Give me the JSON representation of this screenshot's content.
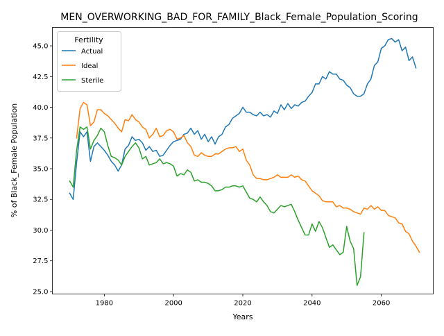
{
  "chart_data": {
    "type": "line",
    "title": "MEN_OVERWORKING_BAD_FOR_FAMILY_Black_Female_Population_Scoring",
    "xlabel": "Years",
    "ylabel": "% of Black_Female Population",
    "xlim": [
      1965,
      2075
    ],
    "ylim": [
      24.8,
      46.5
    ],
    "xticks": [
      1980,
      2000,
      2020,
      2040,
      2060
    ],
    "yticks": [
      25.0,
      27.5,
      30.0,
      32.5,
      35.0,
      37.5,
      40.0,
      42.5,
      45.0
    ],
    "grid": false,
    "legend": {
      "title": "Fertility",
      "position": "top-left"
    },
    "series": [
      {
        "name": "Actual",
        "color": "#1f77b4",
        "points": [
          [
            1970,
            33.0
          ],
          [
            1971,
            32.5
          ],
          [
            1972,
            35.5
          ],
          [
            1973,
            38.0
          ],
          [
            1974,
            37.6
          ],
          [
            1975,
            38.0
          ],
          [
            1976,
            35.6
          ],
          [
            1977,
            36.8
          ],
          [
            1978,
            37.1
          ],
          [
            1979,
            36.8
          ],
          [
            1980,
            36.5
          ],
          [
            1981,
            36.1
          ],
          [
            1982,
            35.6
          ],
          [
            1983,
            35.3
          ],
          [
            1984,
            34.8
          ],
          [
            1985,
            35.3
          ],
          [
            1986,
            36.6
          ],
          [
            1987,
            36.9
          ],
          [
            1988,
            37.6
          ],
          [
            1989,
            37.3
          ],
          [
            1990,
            37.4
          ],
          [
            1991,
            37.1
          ],
          [
            1992,
            36.5
          ],
          [
            1993,
            36.8
          ],
          [
            1994,
            36.4
          ],
          [
            1995,
            36.5
          ],
          [
            1996,
            36.0
          ],
          [
            1997,
            36.1
          ],
          [
            1998,
            36.5
          ],
          [
            1999,
            36.9
          ],
          [
            2000,
            37.2
          ],
          [
            2001,
            37.3
          ],
          [
            2002,
            37.4
          ],
          [
            2003,
            37.8
          ],
          [
            2004,
            37.9
          ],
          [
            2005,
            38.3
          ],
          [
            2006,
            37.8
          ],
          [
            2007,
            38.1
          ],
          [
            2008,
            37.4
          ],
          [
            2009,
            37.8
          ],
          [
            2010,
            37.2
          ],
          [
            2011,
            37.6
          ],
          [
            2012,
            37.0
          ],
          [
            2013,
            37.6
          ],
          [
            2014,
            37.8
          ],
          [
            2015,
            38.4
          ],
          [
            2016,
            38.6
          ],
          [
            2017,
            39.1
          ],
          [
            2018,
            39.3
          ],
          [
            2019,
            39.5
          ],
          [
            2020,
            40.0
          ],
          [
            2021,
            39.6
          ],
          [
            2022,
            39.6
          ],
          [
            2023,
            39.4
          ],
          [
            2024,
            39.3
          ],
          [
            2025,
            39.6
          ],
          [
            2026,
            39.3
          ],
          [
            2027,
            39.4
          ],
          [
            2028,
            39.2
          ],
          [
            2029,
            39.7
          ],
          [
            2030,
            39.5
          ],
          [
            2031,
            40.2
          ],
          [
            2032,
            39.8
          ],
          [
            2033,
            40.3
          ],
          [
            2034,
            39.9
          ],
          [
            2035,
            40.2
          ],
          [
            2036,
            40.1
          ],
          [
            2037,
            40.4
          ],
          [
            2038,
            40.5
          ],
          [
            2039,
            40.9
          ],
          [
            2040,
            41.2
          ],
          [
            2041,
            41.9
          ],
          [
            2042,
            41.9
          ],
          [
            2043,
            42.5
          ],
          [
            2044,
            42.3
          ],
          [
            2045,
            42.9
          ],
          [
            2046,
            42.7
          ],
          [
            2047,
            42.7
          ],
          [
            2048,
            42.3
          ],
          [
            2049,
            42.2
          ],
          [
            2050,
            41.8
          ],
          [
            2051,
            41.6
          ],
          [
            2052,
            41.1
          ],
          [
            2053,
            40.9
          ],
          [
            2054,
            40.9
          ],
          [
            2055,
            41.1
          ],
          [
            2056,
            41.9
          ],
          [
            2057,
            42.3
          ],
          [
            2058,
            43.4
          ],
          [
            2059,
            43.7
          ],
          [
            2060,
            44.8
          ],
          [
            2061,
            45.0
          ],
          [
            2062,
            45.5
          ],
          [
            2063,
            45.6
          ],
          [
            2064,
            45.3
          ],
          [
            2065,
            45.5
          ],
          [
            2066,
            44.6
          ],
          [
            2067,
            44.9
          ],
          [
            2068,
            43.8
          ],
          [
            2069,
            44.1
          ],
          [
            2070,
            43.2
          ]
        ]
      },
      {
        "name": "Ideal",
        "color": "#ff7f0e",
        "points": [
          [
            1972,
            37.5
          ],
          [
            1973,
            39.9
          ],
          [
            1974,
            40.4
          ],
          [
            1975,
            40.2
          ],
          [
            1976,
            38.5
          ],
          [
            1977,
            38.8
          ],
          [
            1978,
            39.8
          ],
          [
            1979,
            39.8
          ],
          [
            1980,
            39.5
          ],
          [
            1981,
            39.3
          ],
          [
            1982,
            39.0
          ],
          [
            1983,
            38.7
          ],
          [
            1984,
            38.3
          ],
          [
            1985,
            38.0
          ],
          [
            1986,
            39.0
          ],
          [
            1987,
            38.9
          ],
          [
            1988,
            39.4
          ],
          [
            1989,
            39.0
          ],
          [
            1990,
            38.8
          ],
          [
            1991,
            38.4
          ],
          [
            1992,
            38.2
          ],
          [
            1993,
            37.5
          ],
          [
            1994,
            37.8
          ],
          [
            1995,
            38.3
          ],
          [
            1996,
            37.6
          ],
          [
            1997,
            37.7
          ],
          [
            1998,
            38.1
          ],
          [
            1999,
            38.2
          ],
          [
            2000,
            38.0
          ],
          [
            2001,
            37.4
          ],
          [
            2002,
            37.5
          ],
          [
            2003,
            37.7
          ],
          [
            2004,
            37.1
          ],
          [
            2005,
            36.8
          ],
          [
            2006,
            36.1
          ],
          [
            2007,
            36.0
          ],
          [
            2008,
            36.3
          ],
          [
            2009,
            36.1
          ],
          [
            2010,
            36.0
          ],
          [
            2011,
            36.0
          ],
          [
            2012,
            36.2
          ],
          [
            2013,
            36.2
          ],
          [
            2014,
            36.4
          ],
          [
            2015,
            36.6
          ],
          [
            2016,
            36.7
          ],
          [
            2017,
            36.7
          ],
          [
            2018,
            36.8
          ],
          [
            2019,
            36.4
          ],
          [
            2020,
            36.6
          ],
          [
            2021,
            35.7
          ],
          [
            2022,
            35.3
          ],
          [
            2023,
            34.5
          ],
          [
            2024,
            34.2
          ],
          [
            2025,
            34.2
          ],
          [
            2026,
            34.1
          ],
          [
            2027,
            34.1
          ],
          [
            2028,
            34.2
          ],
          [
            2029,
            34.3
          ],
          [
            2030,
            34.5
          ],
          [
            2031,
            34.3
          ],
          [
            2032,
            34.3
          ],
          [
            2033,
            34.3
          ],
          [
            2034,
            34.5
          ],
          [
            2035,
            34.3
          ],
          [
            2036,
            34.4
          ],
          [
            2037,
            34.1
          ],
          [
            2038,
            34.0
          ],
          [
            2039,
            33.6
          ],
          [
            2040,
            33.2
          ],
          [
            2041,
            33.0
          ],
          [
            2042,
            32.8
          ],
          [
            2043,
            32.4
          ],
          [
            2044,
            32.3
          ],
          [
            2045,
            32.3
          ],
          [
            2046,
            32.3
          ],
          [
            2047,
            31.9
          ],
          [
            2048,
            32.0
          ],
          [
            2049,
            31.8
          ],
          [
            2050,
            31.8
          ],
          [
            2051,
            31.7
          ],
          [
            2052,
            31.5
          ],
          [
            2053,
            31.4
          ],
          [
            2054,
            31.3
          ],
          [
            2055,
            31.8
          ],
          [
            2056,
            31.7
          ],
          [
            2057,
            32.0
          ],
          [
            2058,
            31.7
          ],
          [
            2059,
            31.9
          ],
          [
            2060,
            31.6
          ],
          [
            2061,
            31.6
          ],
          [
            2062,
            31.2
          ],
          [
            2063,
            31.1
          ],
          [
            2064,
            31.0
          ],
          [
            2065,
            30.6
          ],
          [
            2066,
            30.5
          ],
          [
            2067,
            29.9
          ],
          [
            2068,
            29.7
          ],
          [
            2069,
            29.1
          ],
          [
            2070,
            28.7
          ],
          [
            2071,
            28.2
          ]
        ]
      },
      {
        "name": "Sterile",
        "color": "#2ca02c",
        "points": [
          [
            1970,
            34.0
          ],
          [
            1971,
            33.5
          ],
          [
            1972,
            36.5
          ],
          [
            1973,
            38.4
          ],
          [
            1974,
            38.2
          ],
          [
            1975,
            38.4
          ],
          [
            1976,
            36.6
          ],
          [
            1977,
            37.3
          ],
          [
            1978,
            37.7
          ],
          [
            1979,
            38.3
          ],
          [
            1980,
            38.0
          ],
          [
            1981,
            36.9
          ],
          [
            1982,
            36.0
          ],
          [
            1983,
            35.9
          ],
          [
            1984,
            35.7
          ],
          [
            1985,
            35.3
          ],
          [
            1986,
            36.0
          ],
          [
            1987,
            36.4
          ],
          [
            1988,
            36.8
          ],
          [
            1989,
            37.1
          ],
          [
            1990,
            36.7
          ],
          [
            1991,
            35.8
          ],
          [
            1992,
            36.0
          ],
          [
            1993,
            35.3
          ],
          [
            1994,
            35.4
          ],
          [
            1995,
            35.5
          ],
          [
            1996,
            35.8
          ],
          [
            1997,
            35.4
          ],
          [
            1998,
            35.5
          ],
          [
            1999,
            35.4
          ],
          [
            2000,
            35.2
          ],
          [
            2001,
            34.4
          ],
          [
            2002,
            34.6
          ],
          [
            2003,
            34.5
          ],
          [
            2004,
            34.9
          ],
          [
            2005,
            34.7
          ],
          [
            2006,
            34.0
          ],
          [
            2007,
            34.1
          ],
          [
            2008,
            33.9
          ],
          [
            2009,
            33.9
          ],
          [
            2010,
            33.8
          ],
          [
            2011,
            33.6
          ],
          [
            2012,
            33.2
          ],
          [
            2013,
            33.2
          ],
          [
            2014,
            33.3
          ],
          [
            2015,
            33.5
          ],
          [
            2016,
            33.5
          ],
          [
            2017,
            33.6
          ],
          [
            2018,
            33.6
          ],
          [
            2019,
            33.5
          ],
          [
            2020,
            33.6
          ],
          [
            2021,
            33.1
          ],
          [
            2022,
            32.6
          ],
          [
            2023,
            32.5
          ],
          [
            2024,
            32.3
          ],
          [
            2025,
            32.7
          ],
          [
            2026,
            32.3
          ],
          [
            2027,
            32.0
          ],
          [
            2028,
            31.5
          ],
          [
            2029,
            31.4
          ],
          [
            2030,
            31.7
          ],
          [
            2031,
            32.0
          ],
          [
            2032,
            31.9
          ],
          [
            2033,
            32.0
          ],
          [
            2034,
            32.1
          ],
          [
            2035,
            31.5
          ],
          [
            2036,
            30.8
          ],
          [
            2037,
            30.2
          ],
          [
            2038,
            29.6
          ],
          [
            2039,
            29.6
          ],
          [
            2040,
            30.5
          ],
          [
            2041,
            29.9
          ],
          [
            2042,
            30.7
          ],
          [
            2043,
            30.2
          ],
          [
            2044,
            29.4
          ],
          [
            2045,
            28.6
          ],
          [
            2046,
            28.8
          ],
          [
            2047,
            28.4
          ],
          [
            2048,
            28.0
          ],
          [
            2049,
            28.2
          ],
          [
            2050,
            30.3
          ],
          [
            2051,
            29.1
          ],
          [
            2052,
            28.5
          ],
          [
            2053,
            25.5
          ],
          [
            2054,
            26.2
          ],
          [
            2055,
            29.8
          ]
        ]
      }
    ]
  }
}
